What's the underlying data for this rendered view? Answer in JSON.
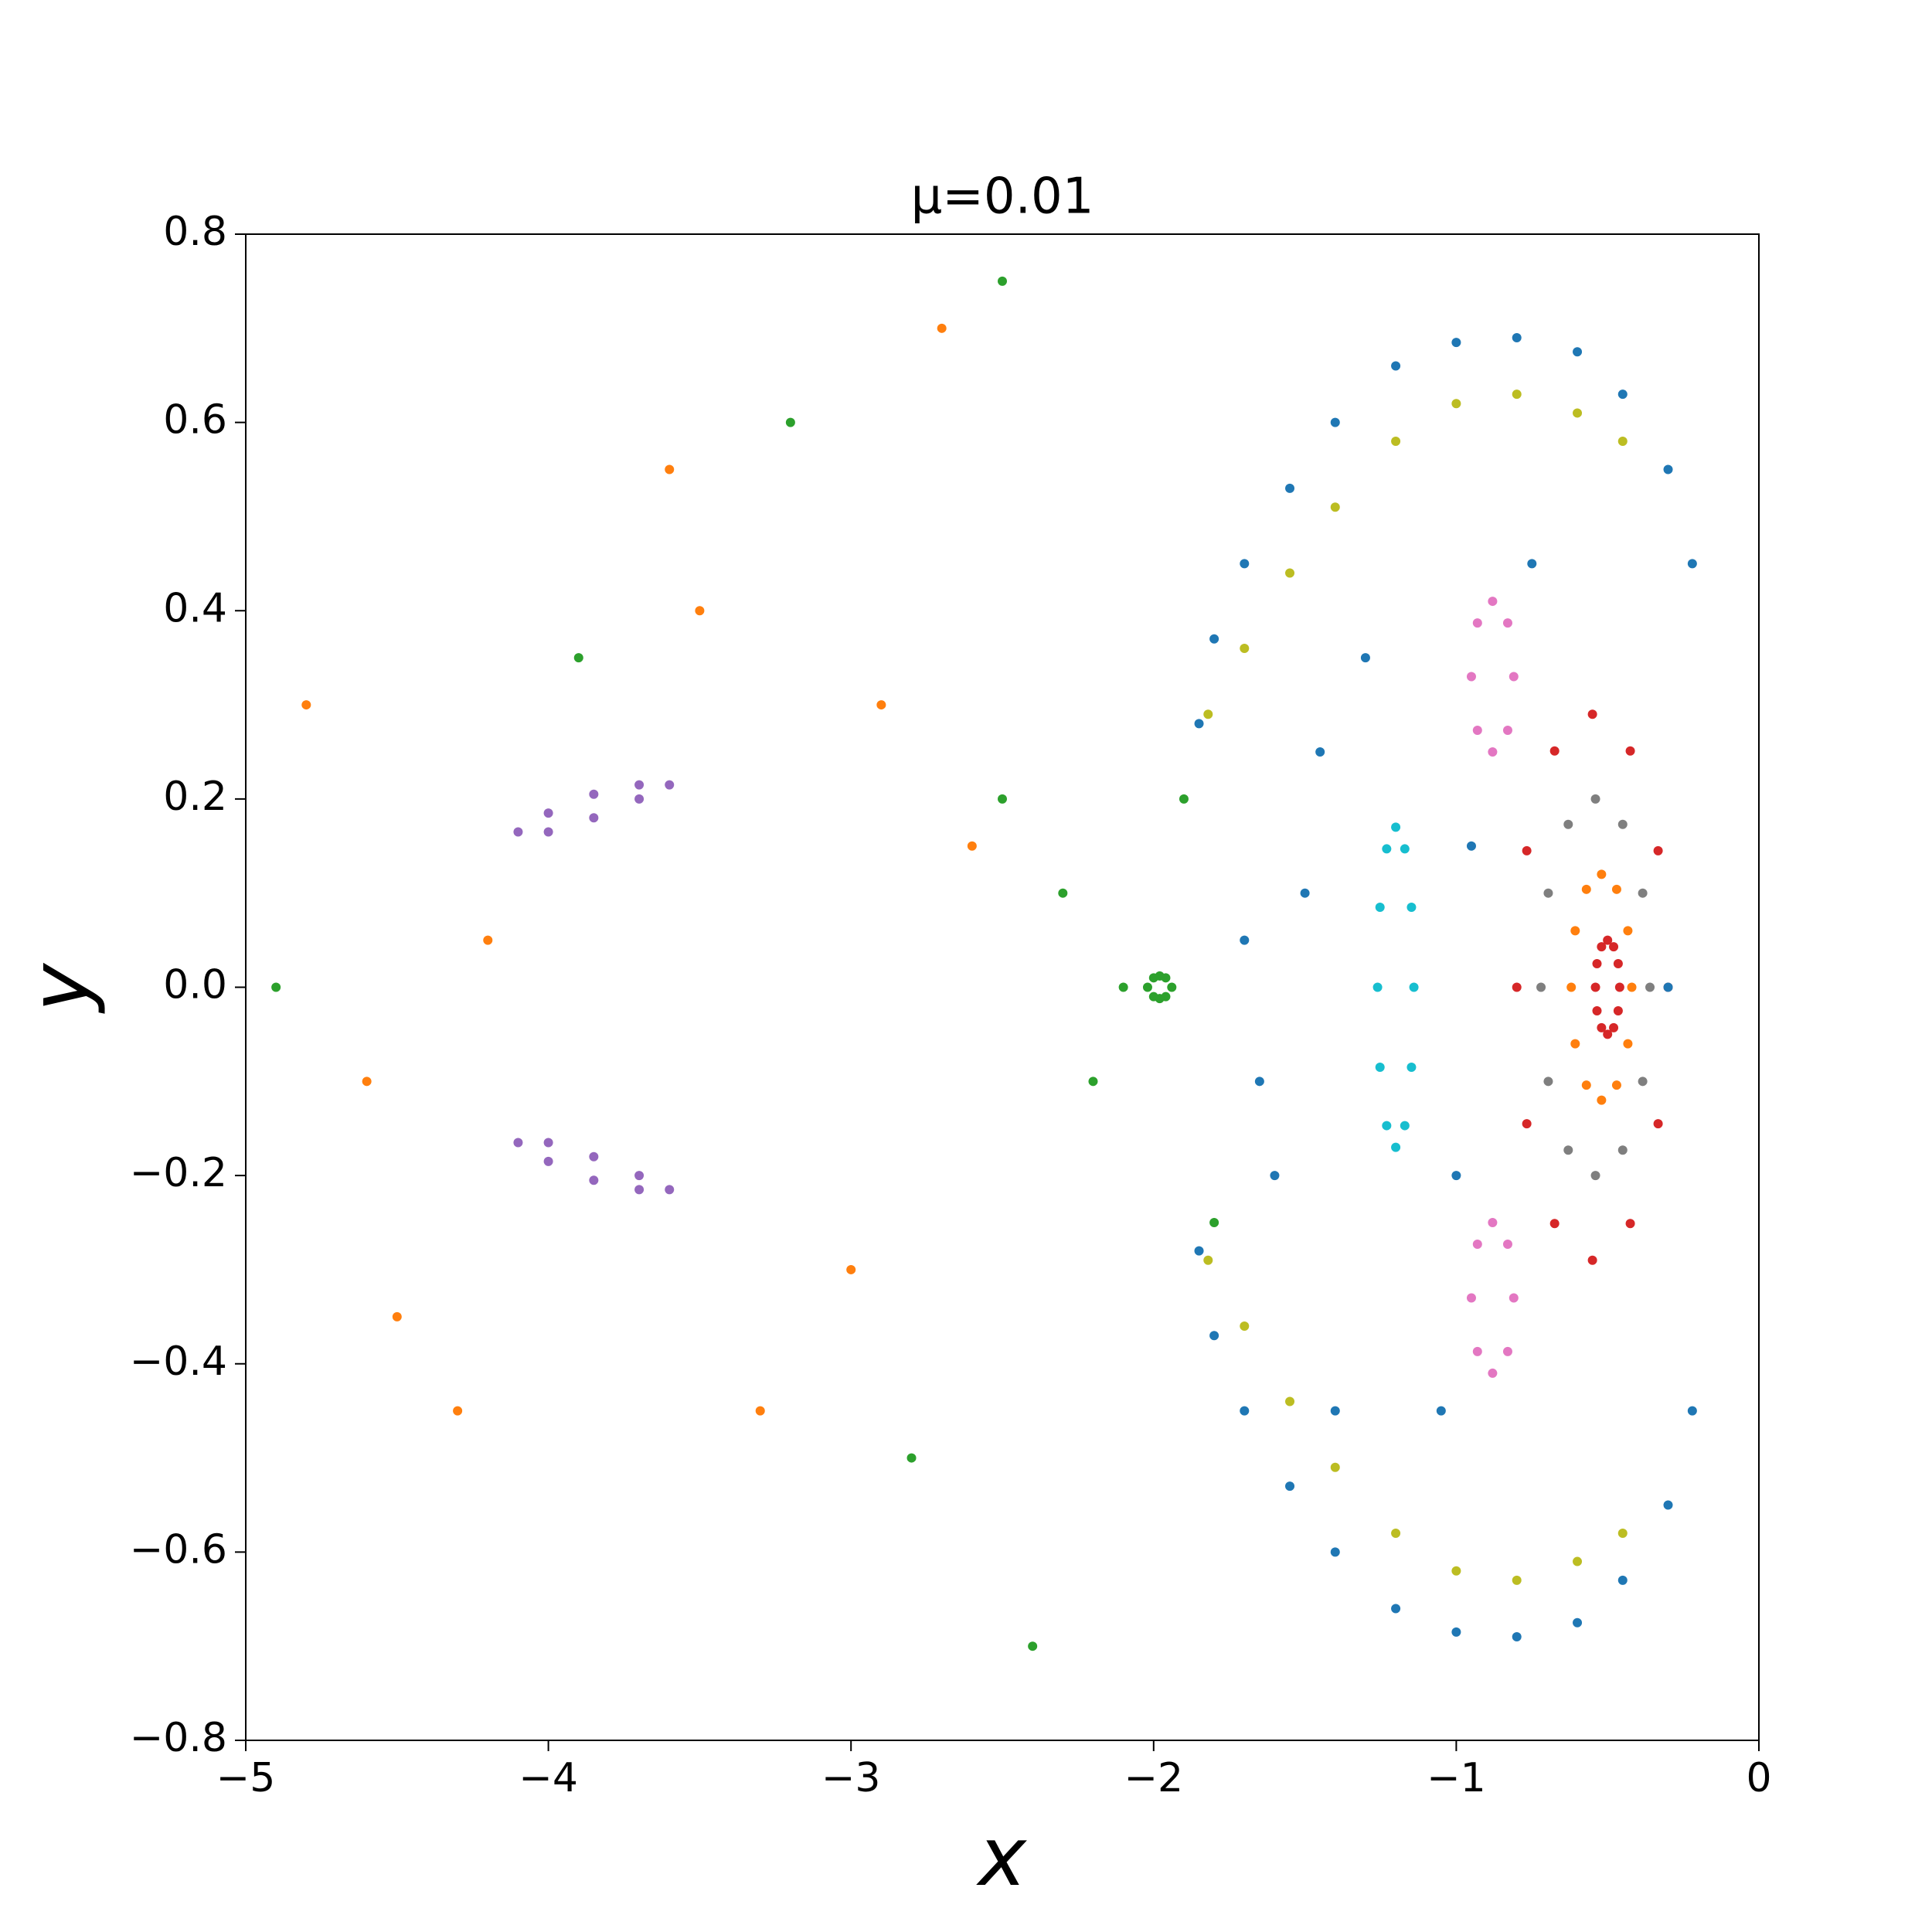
{
  "chart_data": {
    "type": "scatter",
    "title": "μ=0.01",
    "xlabel": "x",
    "ylabel": "y",
    "xlim": [
      -5,
      0
    ],
    "ylim": [
      -0.8,
      0.8
    ],
    "xticks": [
      {
        "value": -5,
        "label": "−5"
      },
      {
        "value": -4,
        "label": "−4"
      },
      {
        "value": -3,
        "label": "−3"
      },
      {
        "value": -2,
        "label": "−2"
      },
      {
        "value": -1,
        "label": "−1"
      },
      0
    ],
    "yticks": [
      {
        "value": -0.8,
        "label": "−0.8"
      },
      {
        "value": -0.6,
        "label": "−0.6"
      },
      {
        "value": -0.4,
        "label": "−0.4"
      },
      {
        "value": -0.2,
        "label": "−0.2"
      },
      {
        "value": 0,
        "label": "0.0"
      },
      0.2,
      0.4,
      0.6,
      0.8
    ],
    "grid": false,
    "series": [
      {
        "color": "#d62728",
        "x": [
          -0.46,
          -0.465,
          -0.48,
          -0.5,
          -0.52,
          -0.535,
          -0.54,
          -0.535,
          -0.52,
          -0.5,
          -0.48,
          -0.465
        ],
        "y": [
          0,
          0.025,
          0.043,
          0.05,
          0.043,
          0.025,
          0,
          -0.025,
          -0.043,
          -0.05,
          -0.043,
          -0.025
        ]
      },
      {
        "color": "#ff7f0e",
        "x": [
          -0.42,
          -0.433,
          -0.47,
          -0.52,
          -0.57,
          -0.607,
          -0.62,
          -0.607,
          -0.57,
          -0.52,
          -0.47,
          -0.433
        ],
        "y": [
          0,
          0.06,
          0.104,
          0.12,
          0.104,
          0.06,
          0,
          -0.06,
          -0.104,
          -0.12,
          -0.104,
          -0.06
        ]
      },
      {
        "color": "#7f7f7f",
        "x": [
          -0.36,
          -0.384,
          -0.45,
          -0.54,
          -0.63,
          -0.696,
          -0.72,
          -0.696,
          -0.63,
          -0.54,
          -0.45,
          -0.384
        ],
        "y": [
          0,
          0.1,
          0.173,
          0.2,
          0.173,
          0.1,
          0,
          -0.1,
          -0.173,
          -0.2,
          -0.173,
          -0.1
        ]
      },
      {
        "color": "#d62728",
        "x": [
          -0.3,
          -0.333,
          -0.425,
          -0.55,
          -0.675,
          -0.767,
          -0.8,
          -0.767,
          -0.675,
          -0.55,
          -0.425,
          -0.333
        ],
        "y": [
          0,
          0.145,
          0.251,
          0.29,
          0.251,
          0.145,
          0,
          -0.145,
          -0.251,
          -0.29,
          -0.251,
          -0.145
        ]
      },
      {
        "color": "#17becf",
        "x": [
          -1.14,
          -1.148,
          -1.17,
          -1.2,
          -1.23,
          -1.252,
          -1.26,
          -1.252,
          -1.23,
          -1.2,
          -1.17,
          -1.148
        ],
        "y": [
          0,
          0.085,
          0.147,
          0.17,
          0.147,
          0.085,
          0,
          -0.085,
          -0.147,
          -0.17,
          -0.147,
          -0.085
        ]
      },
      {
        "color": "#e377c2",
        "x": [
          -0.81,
          -0.83,
          -0.88,
          -0.93,
          -0.95,
          -0.93,
          -0.88,
          -0.83,
          -0.81,
          -0.83,
          -0.88,
          -0.93,
          -0.95,
          -0.93,
          -0.88,
          -0.83
        ],
        "y": [
          0.33,
          0.387,
          0.41,
          0.387,
          0.33,
          0.273,
          0.25,
          0.273,
          -0.33,
          -0.273,
          -0.25,
          -0.273,
          -0.33,
          -0.387,
          -0.41,
          -0.387
        ]
      },
      {
        "color": "#9467bd",
        "x": [
          -4.1,
          -4.0,
          -3.85,
          -3.7,
          -3.6,
          -3.7,
          -3.85,
          -4.0,
          -4.1,
          -4.0,
          -3.85,
          -3.7,
          -3.6,
          -3.7,
          -3.85,
          -4.0
        ],
        "y": [
          0.165,
          0.185,
          0.205,
          0.215,
          0.215,
          0.2,
          0.18,
          0.165,
          -0.165,
          -0.185,
          -0.205,
          -0.215,
          -0.215,
          -0.2,
          -0.18,
          -0.165
        ]
      },
      {
        "color": "#2ca02c",
        "x": [
          -2.02,
          -2.0,
          -1.98,
          -1.96,
          -1.94,
          -1.96,
          -1.98,
          -2.0
        ],
        "y": [
          0,
          0.01,
          0.012,
          0.01,
          0,
          -0.01,
          -0.012,
          -0.01
        ]
      },
      {
        "color": "#1f77b4",
        "x": [
          -1.85,
          -1.8,
          -1.7,
          -1.55,
          -1.4,
          -1.2,
          -1.0,
          -0.8,
          -0.6,
          -0.45,
          -0.3,
          -0.22,
          -1.85,
          -1.8,
          -1.7,
          -1.55,
          -1.4,
          -1.2,
          -1.0,
          -0.8,
          -0.6,
          -0.45,
          -0.3,
          -0.22
        ],
        "y": [
          0.28,
          0.37,
          0.45,
          0.53,
          0.6,
          0.66,
          0.685,
          0.69,
          0.675,
          0.63,
          0.55,
          0.45,
          -0.28,
          -0.37,
          -0.45,
          -0.53,
          -0.6,
          -0.66,
          -0.685,
          -0.69,
          -0.675,
          -0.63,
          -0.55,
          -0.45
        ]
      },
      {
        "color": "#bcbd22",
        "x": [
          -1.82,
          -1.7,
          -1.55,
          -1.4,
          -1.2,
          -1.0,
          -0.8,
          -0.6,
          -0.45,
          -1.82,
          -1.7,
          -1.55,
          -1.4,
          -1.2,
          -1.0,
          -0.8,
          -0.6,
          -0.45
        ],
        "y": [
          0.29,
          0.36,
          0.44,
          0.51,
          0.58,
          0.62,
          0.63,
          0.61,
          0.58,
          -0.29,
          -0.36,
          -0.44,
          -0.51,
          -0.58,
          -0.62,
          -0.63,
          -0.61,
          -0.58
        ]
      },
      {
        "color": "#1f77b4",
        "x": [
          -1.5,
          -1.6,
          -1.3,
          -1.0,
          -1.4,
          -0.95,
          -1.7,
          -1.05,
          -0.3,
          -1.45,
          -1.65,
          -0.75
        ],
        "y": [
          0.1,
          -0.2,
          0.35,
          -0.2,
          -0.45,
          0.15,
          0.05,
          -0.45,
          0.0,
          0.25,
          -0.1,
          0.45
        ]
      },
      {
        "color": "#ff7f0e",
        "x": [
          -4.8,
          -4.5,
          -4.2,
          -3.5,
          -3.3,
          -2.9,
          -4.6,
          -3.0,
          -2.6,
          -3.6,
          -2.7,
          -4.3
        ],
        "y": [
          0.3,
          -0.35,
          0.05,
          0.4,
          -0.45,
          0.3,
          -0.1,
          -0.3,
          0.15,
          0.55,
          0.7,
          -0.45
        ]
      },
      {
        "color": "#2ca02c",
        "x": [
          -2.3,
          -2.2,
          -2.5,
          -2.8,
          -3.2,
          -2.5,
          -2.4,
          -4.9,
          -3.9,
          -2.1,
          -1.9,
          -1.8
        ],
        "y": [
          0.1,
          -0.1,
          0.2,
          -0.5,
          0.6,
          0.75,
          -0.7,
          0.0,
          0.35,
          0.0,
          0.2,
          -0.25
        ]
      }
    ]
  }
}
